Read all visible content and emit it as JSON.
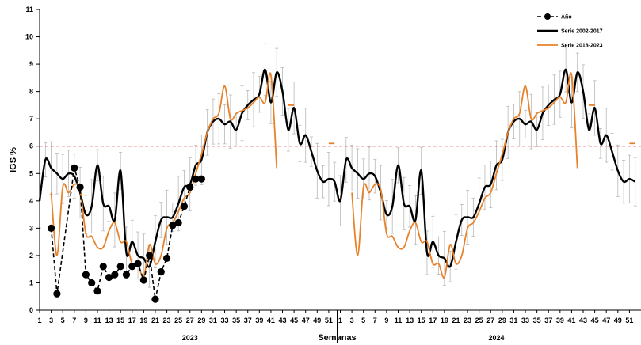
{
  "chart_data": {
    "type": "line",
    "title": "",
    "ylabel": "IGS %",
    "xlabel": "Semanas",
    "ylim": [
      0,
      11
    ],
    "yticks": [
      0,
      1,
      2,
      3,
      4,
      5,
      6,
      7,
      8,
      9,
      10,
      11
    ],
    "grid": false,
    "legend_position": "top-right",
    "reference_line": {
      "value": 6,
      "color": "#e02020"
    },
    "xtick_labels": [
      "1",
      "3",
      "5",
      "7",
      "9",
      "11",
      "13",
      "15",
      "17",
      "19",
      "21",
      "23",
      "25",
      "27",
      "29",
      "31",
      "33",
      "35",
      "37",
      "39",
      "41",
      "43",
      "45",
      "47",
      "49",
      "51",
      "1",
      "3",
      "5",
      "7",
      "9",
      "11",
      "13",
      "15",
      "17",
      "19",
      "21",
      "23",
      "25",
      "27",
      "29",
      "31",
      "33",
      "35",
      "37",
      "39",
      "41",
      "43",
      "45",
      "47",
      "49",
      "51"
    ],
    "year_labels": [
      "2023",
      "2024"
    ],
    "series": [
      {
        "name": "Año",
        "color": "#000000",
        "style": "dashed-markers",
        "x": [
          3,
          4,
          7,
          8,
          9,
          10,
          11,
          12,
          13,
          14,
          15,
          16,
          17,
          18,
          19,
          20,
          21,
          22,
          23,
          24,
          25,
          26,
          27,
          28,
          29
        ],
        "values": [
          3.0,
          0.6,
          5.2,
          4.5,
          1.3,
          1.0,
          0.7,
          1.6,
          1.2,
          1.3,
          1.6,
          1.3,
          1.6,
          1.7,
          1.1,
          2.0,
          0.4,
          1.4,
          1.9,
          3.1,
          3.2,
          3.8,
          4.5,
          4.8,
          4.8
        ]
      },
      {
        "name": "Serie 2002-2017",
        "color": "#000000",
        "style": "line",
        "x": [
          1,
          2,
          3,
          4,
          5,
          6,
          7,
          8,
          9,
          10,
          11,
          12,
          13,
          14,
          15,
          16,
          17,
          18,
          19,
          20,
          21,
          22,
          23,
          24,
          25,
          26,
          27,
          28,
          29,
          30,
          31,
          32,
          33,
          34,
          35,
          36,
          37,
          38,
          39,
          40,
          41,
          42,
          43,
          44,
          45,
          46,
          47,
          48,
          49,
          50,
          51,
          52,
          53,
          54,
          55,
          56,
          57,
          58,
          59,
          60,
          61,
          62,
          63,
          64,
          65,
          66,
          67,
          68,
          69,
          70,
          71,
          72,
          73,
          74,
          75,
          76,
          77,
          78,
          79,
          80,
          81,
          82,
          83,
          84,
          85,
          86,
          87,
          88,
          89,
          90,
          91,
          92,
          93,
          94,
          95,
          96,
          97,
          98,
          99,
          100,
          101,
          102,
          103,
          104
        ],
        "values": [
          4.0,
          5.5,
          5.2,
          5.0,
          4.8,
          5.0,
          4.9,
          4.3,
          3.5,
          3.8,
          5.3,
          3.9,
          3.8,
          3.3,
          5.1,
          2.1,
          2.5,
          2.0,
          1.9,
          1.6,
          2.5,
          3.3,
          3.4,
          3.4,
          3.9,
          4.5,
          4.6,
          5.3,
          5.5,
          6.5,
          6.9,
          7.0,
          6.8,
          6.9,
          6.6,
          7.2,
          7.5,
          7.7,
          7.9,
          8.8,
          7.6,
          8.7,
          8.0,
          6.6,
          7.4,
          6.1,
          6.4,
          5.8,
          5.1,
          4.7,
          4.8,
          4.7,
          4.0,
          5.5,
          5.2,
          5.0,
          4.8,
          5.0,
          4.9,
          4.3,
          3.5,
          3.8,
          5.3,
          3.9,
          3.8,
          3.3,
          5.1,
          2.1,
          2.5,
          2.0,
          1.9,
          1.6,
          2.5,
          3.3,
          3.4,
          3.4,
          3.9,
          4.5,
          4.6,
          5.3,
          5.5,
          6.5,
          6.9,
          7.0,
          6.8,
          6.9,
          6.6,
          7.2,
          7.5,
          7.7,
          7.9,
          8.8,
          7.6,
          8.7,
          8.0,
          6.6,
          7.4,
          6.1,
          6.4,
          5.8,
          5.1,
          4.7,
          4.8,
          4.7
        ]
      },
      {
        "name": "Serie 2018-2023",
        "color": "#e8822a",
        "style": "line",
        "x": [
          3,
          4,
          5,
          6,
          7,
          8,
          9,
          10,
          11,
          12,
          13,
          14,
          15,
          16,
          17,
          18,
          19,
          20,
          21,
          22,
          23,
          24,
          25,
          26,
          27,
          28,
          29,
          30,
          31,
          32,
          33,
          34,
          35,
          36,
          37,
          38,
          39,
          40,
          41,
          42,
          55,
          56,
          57,
          58,
          59,
          60,
          61,
          62,
          63,
          64,
          65,
          66,
          67,
          68,
          69,
          70,
          71,
          72,
          73,
          74,
          75,
          76,
          77,
          78,
          79,
          80,
          81,
          82,
          83,
          84,
          85,
          86,
          87,
          88,
          89,
          90,
          91,
          92,
          93,
          94
        ],
        "values": [
          4.3,
          2.0,
          4.5,
          4.3,
          4.6,
          4.4,
          2.8,
          2.7,
          2.3,
          2.3,
          2.9,
          3.2,
          2.5,
          2.5,
          1.7,
          1.7,
          1.2,
          2.4,
          1.7,
          2.0,
          3.0,
          3.2,
          3.6,
          4.1,
          4.3,
          5.0,
          5.7,
          6.5,
          7.0,
          7.2,
          8.2,
          7.0,
          7.2,
          7.3,
          7.4,
          7.6,
          7.8,
          7.6,
          8.6,
          5.2,
          4.3,
          2.0,
          4.5,
          4.3,
          4.6,
          4.4,
          2.8,
          2.7,
          2.3,
          2.3,
          2.9,
          3.2,
          2.5,
          2.5,
          1.7,
          1.7,
          1.2,
          2.4,
          1.7,
          2.0,
          3.0,
          3.2,
          3.6,
          4.1,
          4.3,
          5.0,
          5.7,
          6.5,
          7.0,
          7.2,
          8.2,
          7.0,
          7.2,
          7.3,
          7.4,
          7.6,
          7.8,
          7.6,
          8.6,
          5.2
        ]
      }
    ]
  }
}
